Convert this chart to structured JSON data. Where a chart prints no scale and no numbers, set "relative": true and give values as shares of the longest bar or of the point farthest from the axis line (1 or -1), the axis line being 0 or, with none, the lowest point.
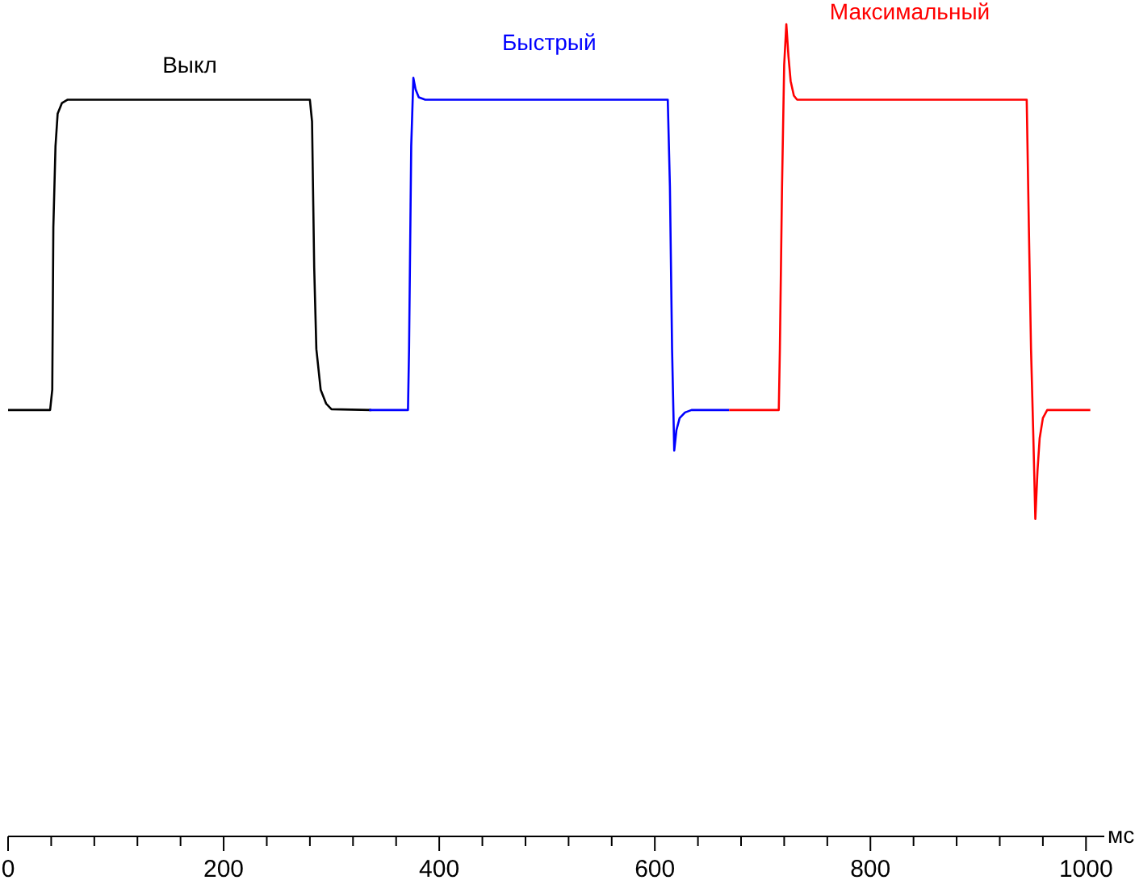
{
  "chart_data": {
    "type": "line",
    "relative": true,
    "xlabel": "мс",
    "xlim": [
      0,
      1017
    ],
    "xticks": [
      0,
      {
        "value": 40,
        "label": null
      },
      {
        "value": 80,
        "label": null
      },
      {
        "value": 120,
        "label": null
      },
      {
        "value": 160,
        "label": null
      },
      200,
      {
        "value": 240,
        "label": null
      },
      {
        "value": 280,
        "label": null
      },
      {
        "value": 320,
        "label": null
      },
      {
        "value": 360,
        "label": null
      },
      400,
      {
        "value": 440,
        "label": null
      },
      {
        "value": 480,
        "label": null
      },
      {
        "value": 520,
        "label": null
      },
      {
        "value": 560,
        "label": null
      },
      600,
      {
        "value": 640,
        "label": null
      },
      {
        "value": 680,
        "label": null
      },
      {
        "value": 720,
        "label": null
      },
      {
        "value": 760,
        "label": null
      },
      800,
      {
        "value": 840,
        "label": null
      },
      {
        "value": 880,
        "label": null
      },
      {
        "value": 920,
        "label": null
      },
      {
        "value": 960,
        "label": null
      },
      1000
    ],
    "grid": false,
    "marker": "none",
    "line_style": "solid",
    "series": [
      {
        "name": "Выкл",
        "color": "#000000",
        "x": [
          0,
          39,
          41,
          42,
          44,
          46,
          50,
          55,
          280,
          282,
          284,
          286,
          290,
          295,
          300,
          337
        ],
        "values": [
          0.525,
          0.525,
          0.55,
          0.75,
          0.85,
          0.89,
          0.903,
          0.907,
          0.907,
          0.88,
          0.7,
          0.6,
          0.55,
          0.533,
          0.526,
          0.525
        ]
      },
      {
        "name": "Быстрый",
        "color": "#0000ff",
        "x": [
          335,
          371,
          372,
          374,
          376,
          378,
          381,
          387,
          612,
          614,
          616,
          618,
          620,
          623,
          628,
          634,
          669
        ],
        "values": [
          0.525,
          0.525,
          0.6,
          0.85,
          0.934,
          0.92,
          0.91,
          0.907,
          0.907,
          0.8,
          0.6,
          0.475,
          0.5,
          0.515,
          0.522,
          0.525,
          0.525
        ]
      },
      {
        "name": "Максимальный",
        "color": "#ff0000",
        "x": [
          669,
          715,
          716,
          718,
          720,
          722,
          724,
          726,
          729,
          732,
          945,
          947,
          949,
          951,
          953,
          955,
          957,
          960,
          964,
          1004
        ],
        "values": [
          0.525,
          0.525,
          0.6,
          0.8,
          0.95,
          1,
          0.96,
          0.93,
          0.912,
          0.907,
          0.907,
          0.75,
          0.6,
          0.5,
          0.391,
          0.45,
          0.49,
          0.515,
          0.525,
          0.525
        ]
      }
    ]
  }
}
